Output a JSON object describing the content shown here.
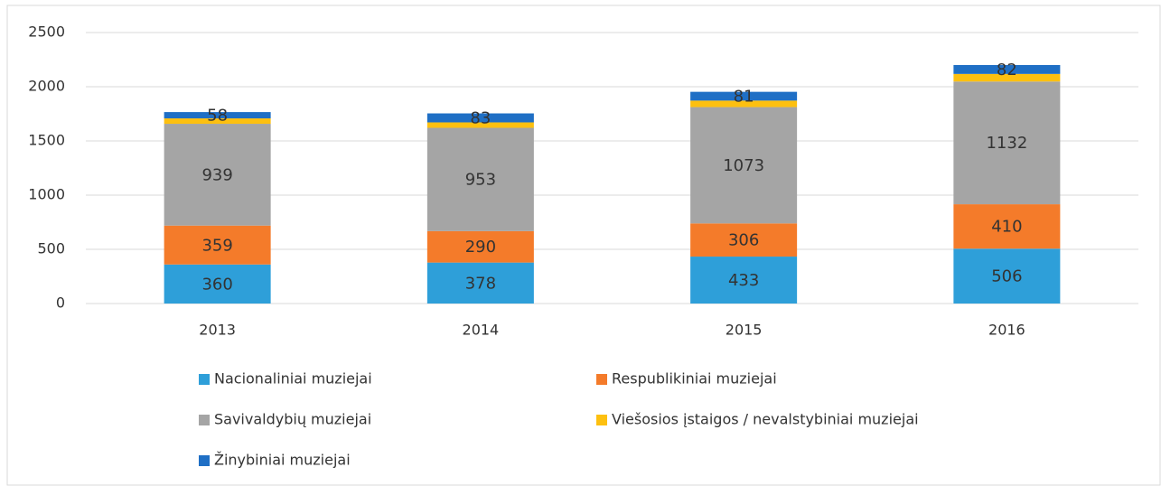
{
  "chart_data": {
    "type": "stacked_bar",
    "categories": [
      "2013",
      "2014",
      "2015",
      "2016"
    ],
    "series": [
      {
        "name": "Nacionaliniai muziejai",
        "color": "#2e9fd9",
        "values": [
          360,
          378,
          433,
          506
        ]
      },
      {
        "name": "Respublikiniai muziejai",
        "color": "#f47b2a",
        "values": [
          359,
          290,
          306,
          410
        ]
      },
      {
        "name": "Savivaldybių muziejai",
        "color": "#a5a5a5",
        "values": [
          939,
          953,
          1073,
          1132
        ]
      },
      {
        "name": "Viešosios įstaigos / nevalstybiniai muziejai",
        "color": "#fdc010",
        "values": [
          50,
          50,
          60,
          70
        ],
        "show_labels": false
      },
      {
        "name": "Žinybiniai muziejai",
        "color": "#1f6fc5",
        "values": [
          58,
          83,
          81,
          82
        ]
      }
    ],
    "ylim": [
      0,
      2500
    ],
    "yticks": [
      0,
      500,
      1000,
      1500,
      2000,
      2500
    ],
    "grid": true,
    "legend": "bottom"
  }
}
